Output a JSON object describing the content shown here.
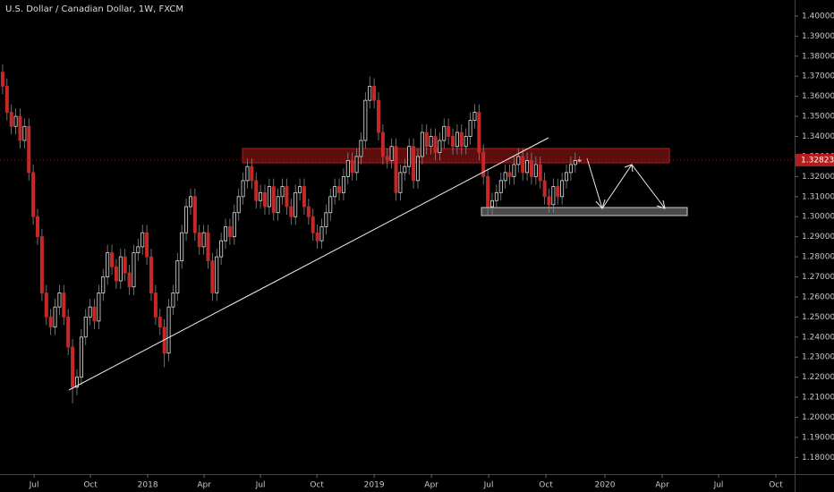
{
  "chart_data": {
    "type": "candlestick",
    "title": "U.S. Dollar / Canadian Dollar, 1W, FXCM",
    "up_color": "#e0e0e0",
    "down_color": "#c62828",
    "candles": [
      [
        1.372,
        1.376,
        1.361,
        1.365
      ],
      [
        1.365,
        1.369,
        1.348,
        1.352
      ],
      [
        1.352,
        1.356,
        1.341,
        1.345
      ],
      [
        1.345,
        1.354,
        1.341,
        1.35
      ],
      [
        1.35,
        1.354,
        1.334,
        1.338
      ],
      [
        1.338,
        1.349,
        1.334,
        1.345
      ],
      [
        1.345,
        1.349,
        1.318,
        1.322
      ],
      [
        1.322,
        1.326,
        1.296,
        1.3
      ],
      [
        1.3,
        1.304,
        1.286,
        1.29
      ],
      [
        1.29,
        1.294,
        1.258,
        1.262
      ],
      [
        1.262,
        1.266,
        1.246,
        1.25
      ],
      [
        1.25,
        1.254,
        1.241,
        1.245
      ],
      [
        1.245,
        1.259,
        1.241,
        1.255
      ],
      [
        1.255,
        1.266,
        1.251,
        1.262
      ],
      [
        1.262,
        1.266,
        1.246,
        1.25
      ],
      [
        1.25,
        1.254,
        1.231,
        1.235
      ],
      [
        1.235,
        1.239,
        1.207,
        1.215
      ],
      [
        1.215,
        1.224,
        1.211,
        1.22
      ],
      [
        1.22,
        1.244,
        1.216,
        1.24
      ],
      [
        1.24,
        1.254,
        1.236,
        1.25
      ],
      [
        1.25,
        1.259,
        1.246,
        1.255
      ],
      [
        1.255,
        1.259,
        1.244,
        1.248
      ],
      [
        1.248,
        1.266,
        1.244,
        1.262
      ],
      [
        1.262,
        1.274,
        1.258,
        1.27
      ],
      [
        1.27,
        1.286,
        1.266,
        1.282
      ],
      [
        1.282,
        1.286,
        1.271,
        1.275
      ],
      [
        1.275,
        1.279,
        1.264,
        1.268
      ],
      [
        1.268,
        1.284,
        1.264,
        1.28
      ],
      [
        1.28,
        1.284,
        1.268,
        1.272
      ],
      [
        1.272,
        1.276,
        1.261,
        1.265
      ],
      [
        1.265,
        1.286,
        1.261,
        1.282
      ],
      [
        1.282,
        1.289,
        1.278,
        1.285
      ],
      [
        1.285,
        1.296,
        1.281,
        1.292
      ],
      [
        1.292,
        1.296,
        1.276,
        1.28
      ],
      [
        1.28,
        1.284,
        1.258,
        1.262
      ],
      [
        1.262,
        1.266,
        1.246,
        1.25
      ],
      [
        1.25,
        1.254,
        1.241,
        1.245
      ],
      [
        1.245,
        1.249,
        1.225,
        1.232
      ],
      [
        1.232,
        1.259,
        1.228,
        1.255
      ],
      [
        1.255,
        1.266,
        1.251,
        1.262
      ],
      [
        1.262,
        1.282,
        1.258,
        1.278
      ],
      [
        1.278,
        1.296,
        1.274,
        1.292
      ],
      [
        1.292,
        1.309,
        1.288,
        1.305
      ],
      [
        1.305,
        1.314,
        1.301,
        1.31
      ],
      [
        1.31,
        1.314,
        1.288,
        1.292
      ],
      [
        1.292,
        1.296,
        1.281,
        1.285
      ],
      [
        1.285,
        1.296,
        1.281,
        1.292
      ],
      [
        1.292,
        1.296,
        1.274,
        1.278
      ],
      [
        1.278,
        1.282,
        1.258,
        1.262
      ],
      [
        1.262,
        1.284,
        1.258,
        1.28
      ],
      [
        1.28,
        1.292,
        1.276,
        1.288
      ],
      [
        1.288,
        1.299,
        1.284,
        1.295
      ],
      [
        1.295,
        1.299,
        1.286,
        1.29
      ],
      [
        1.29,
        1.306,
        1.286,
        1.302
      ],
      [
        1.302,
        1.314,
        1.298,
        1.31
      ],
      [
        1.31,
        1.322,
        1.306,
        1.318
      ],
      [
        1.318,
        1.329,
        1.314,
        1.325
      ],
      [
        1.325,
        1.329,
        1.314,
        1.318
      ],
      [
        1.318,
        1.322,
        1.304,
        1.308
      ],
      [
        1.308,
        1.316,
        1.304,
        1.312
      ],
      [
        1.312,
        1.316,
        1.301,
        1.305
      ],
      [
        1.305,
        1.319,
        1.301,
        1.315
      ],
      [
        1.315,
        1.319,
        1.298,
        1.302
      ],
      [
        1.302,
        1.314,
        1.298,
        1.31
      ],
      [
        1.31,
        1.319,
        1.306,
        1.315
      ],
      [
        1.315,
        1.319,
        1.301,
        1.305
      ],
      [
        1.305,
        1.309,
        1.296,
        1.3
      ],
      [
        1.3,
        1.316,
        1.296,
        1.312
      ],
      [
        1.312,
        1.319,
        1.308,
        1.315
      ],
      [
        1.315,
        1.319,
        1.301,
        1.305
      ],
      [
        1.305,
        1.309,
        1.296,
        1.3
      ],
      [
        1.3,
        1.304,
        1.288,
        1.292
      ],
      [
        1.292,
        1.296,
        1.284,
        1.288
      ],
      [
        1.288,
        1.299,
        1.284,
        1.295
      ],
      [
        1.295,
        1.306,
        1.291,
        1.302
      ],
      [
        1.302,
        1.314,
        1.298,
        1.31
      ],
      [
        1.31,
        1.319,
        1.306,
        1.315
      ],
      [
        1.315,
        1.319,
        1.308,
        1.312
      ],
      [
        1.312,
        1.324,
        1.308,
        1.32
      ],
      [
        1.32,
        1.332,
        1.316,
        1.328
      ],
      [
        1.328,
        1.332,
        1.318,
        1.322
      ],
      [
        1.322,
        1.334,
        1.318,
        1.33
      ],
      [
        1.33,
        1.342,
        1.326,
        1.338
      ],
      [
        1.338,
        1.362,
        1.334,
        1.358
      ],
      [
        1.358,
        1.37,
        1.354,
        1.365
      ],
      [
        1.365,
        1.369,
        1.354,
        1.358
      ],
      [
        1.358,
        1.362,
        1.338,
        1.342
      ],
      [
        1.342,
        1.346,
        1.326,
        1.33
      ],
      [
        1.33,
        1.334,
        1.324,
        1.328
      ],
      [
        1.328,
        1.339,
        1.324,
        1.335
      ],
      [
        1.335,
        1.339,
        1.308,
        1.312
      ],
      [
        1.312,
        1.326,
        1.308,
        1.322
      ],
      [
        1.322,
        1.329,
        1.318,
        1.325
      ],
      [
        1.325,
        1.339,
        1.321,
        1.335
      ],
      [
        1.335,
        1.339,
        1.314,
        1.318
      ],
      [
        1.318,
        1.334,
        1.314,
        1.33
      ],
      [
        1.33,
        1.346,
        1.326,
        1.342
      ],
      [
        1.342,
        1.346,
        1.331,
        1.335
      ],
      [
        1.335,
        1.344,
        1.331,
        1.34
      ],
      [
        1.34,
        1.344,
        1.328,
        1.332
      ],
      [
        1.332,
        1.342,
        1.328,
        1.338
      ],
      [
        1.338,
        1.349,
        1.334,
        1.345
      ],
      [
        1.345,
        1.349,
        1.336,
        1.34
      ],
      [
        1.34,
        1.344,
        1.331,
        1.335
      ],
      [
        1.335,
        1.346,
        1.331,
        1.342
      ],
      [
        1.342,
        1.346,
        1.331,
        1.335
      ],
      [
        1.335,
        1.344,
        1.331,
        1.34
      ],
      [
        1.34,
        1.352,
        1.336,
        1.348
      ],
      [
        1.348,
        1.356,
        1.344,
        1.352
      ],
      [
        1.352,
        1.356,
        1.328,
        1.332
      ],
      [
        1.332,
        1.336,
        1.316,
        1.32
      ],
      [
        1.32,
        1.324,
        1.301,
        1.305
      ],
      [
        1.305,
        1.312,
        1.301,
        1.308
      ],
      [
        1.308,
        1.316,
        1.304,
        1.312
      ],
      [
        1.312,
        1.322,
        1.308,
        1.318
      ],
      [
        1.318,
        1.326,
        1.314,
        1.322
      ],
      [
        1.322,
        1.326,
        1.316,
        1.32
      ],
      [
        1.32,
        1.33,
        1.316,
        1.326
      ],
      [
        1.326,
        1.334,
        1.322,
        1.33
      ],
      [
        1.33,
        1.334,
        1.318,
        1.322
      ],
      [
        1.322,
        1.332,
        1.318,
        1.328
      ],
      [
        1.328,
        1.332,
        1.316,
        1.32
      ],
      [
        1.32,
        1.33,
        1.316,
        1.326
      ],
      [
        1.326,
        1.33,
        1.314,
        1.318
      ],
      [
        1.318,
        1.322,
        1.306,
        1.31
      ],
      [
        1.31,
        1.314,
        1.302,
        1.306
      ],
      [
        1.306,
        1.319,
        1.302,
        1.315
      ],
      [
        1.315,
        1.319,
        1.306,
        1.31
      ],
      [
        1.31,
        1.322,
        1.306,
        1.318
      ],
      [
        1.318,
        1.326,
        1.314,
        1.322
      ],
      [
        1.322,
        1.33,
        1.318,
        1.326
      ],
      [
        1.326,
        1.332,
        1.322,
        1.328
      ],
      [
        1.328,
        1.33,
        1.327,
        1.32823
      ]
    ],
    "last_price": 1.32823,
    "xlim": [
      -0.6,
      181.2
    ],
    "xticks": [
      {
        "value": 7.2,
        "label": "Jul"
      },
      {
        "value": 20.1,
        "label": "Oct"
      },
      {
        "value": 33.2,
        "label": "2018"
      },
      {
        "value": 46.1,
        "label": "Apr"
      },
      {
        "value": 59,
        "label": "Jul"
      },
      {
        "value": 71.9,
        "label": "Oct"
      },
      {
        "value": 85,
        "label": "2019"
      },
      {
        "value": 98.1,
        "label": "Apr"
      },
      {
        "value": 111.2,
        "label": "Jul"
      },
      {
        "value": 124.3,
        "label": "Oct"
      },
      {
        "value": 137.8,
        "label": "2020"
      },
      {
        "value": 150.9,
        "label": "Apr"
      },
      {
        "value": 163.8,
        "label": "Jul"
      },
      {
        "value": 176.9,
        "label": "Oct"
      }
    ],
    "ylim": [
      1.1717,
      1.408
    ],
    "yticks": [
      {
        "value": 1.18,
        "label": "1.18000"
      },
      {
        "value": 1.19,
        "label": "1.19000"
      },
      {
        "value": 1.2,
        "label": "1.20000"
      },
      {
        "value": 1.21,
        "label": "1.21000"
      },
      {
        "value": 1.22,
        "label": "1.22000"
      },
      {
        "value": 1.23,
        "label": "1.23000"
      },
      {
        "value": 1.24,
        "label": "1.24000"
      },
      {
        "value": 1.25,
        "label": "1.25000"
      },
      {
        "value": 1.26,
        "label": "1.26000"
      },
      {
        "value": 1.27,
        "label": "1.27000"
      },
      {
        "value": 1.28,
        "label": "1.28000"
      },
      {
        "value": 1.29,
        "label": "1.29000"
      },
      {
        "value": 1.3,
        "label": "1.30000"
      },
      {
        "value": 1.31,
        "label": "1.31000"
      },
      {
        "value": 1.32,
        "label": "1.32000"
      },
      {
        "value": 1.33,
        "label": "1.33000"
      },
      {
        "value": 1.34,
        "label": "1.34000"
      },
      {
        "value": 1.35,
        "label": "1.35000"
      },
      {
        "value": 1.36,
        "label": "1.36000"
      },
      {
        "value": 1.37,
        "label": "1.37000"
      },
      {
        "value": 1.38,
        "label": "1.38000"
      },
      {
        "value": 1.39,
        "label": "1.39000"
      },
      {
        "value": 1.4,
        "label": "1.40000"
      }
    ]
  }
}
